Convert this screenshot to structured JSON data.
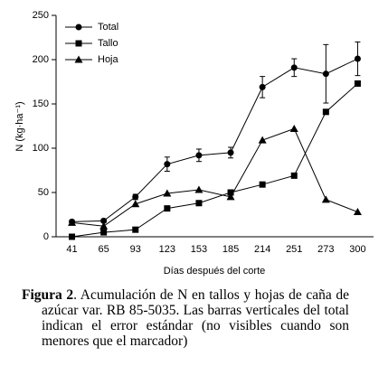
{
  "chart_data": {
    "type": "line",
    "xlabel": "Días después del corte",
    "ylabel": "N (kg·ha⁻¹)",
    "categories": [
      "41",
      "65",
      "93",
      "123",
      "153",
      "185",
      "214",
      "251",
      "273",
      "300"
    ],
    "ylim": [
      0,
      250
    ],
    "yticks": [
      0,
      50,
      100,
      150,
      200,
      250
    ],
    "legend": "upper left",
    "series": [
      {
        "name": "Total",
        "color": "#000000",
        "marker": "circle",
        "values": [
          17,
          18,
          45,
          82,
          92,
          95,
          169,
          191,
          184,
          201
        ],
        "errors": [
          2,
          2,
          3,
          8,
          7,
          6,
          12,
          10,
          33,
          19
        ]
      },
      {
        "name": "Tallo",
        "color": "#000000",
        "marker": "square",
        "values": [
          0,
          5,
          8,
          32,
          38,
          50,
          59,
          69,
          141,
          173
        ]
      },
      {
        "name": "Hoja",
        "color": "#000000",
        "marker": "triangle",
        "values": [
          16,
          12,
          37,
          49,
          53,
          45,
          109,
          122,
          42,
          28
        ]
      }
    ]
  },
  "caption": {
    "label": "Figura 2",
    "text": ". Acumulación de N en tallos y hojas de caña de azúcar var. RB 85-5035. Las barras verticales del total indican el error estándar (no visibles cuando son menores que el marcador)"
  }
}
